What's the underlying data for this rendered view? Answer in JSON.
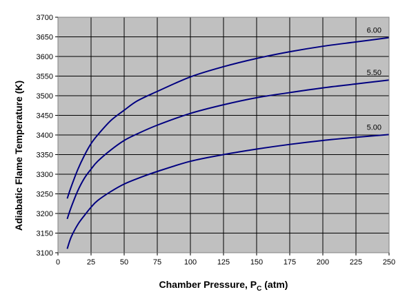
{
  "chart_data": {
    "type": "line",
    "title": "",
    "xlabel": {
      "main": "Chamber Pressure, P",
      "sub": "C",
      "suffix": " (atm)"
    },
    "ylabel": "Adiabatic Flame Temperature (K)",
    "xlim": [
      0,
      250
    ],
    "ylim": [
      3100,
      3700
    ],
    "xticks": [
      0,
      25,
      50,
      75,
      100,
      125,
      150,
      175,
      200,
      225,
      250
    ],
    "yticks": [
      3100,
      3150,
      3200,
      3250,
      3300,
      3350,
      3400,
      3450,
      3500,
      3550,
      3600,
      3650,
      3700
    ],
    "grid": true,
    "legend": "none",
    "plot_background": "#c0c0c0",
    "line_color": "#000080",
    "series": [
      {
        "name": "6.00",
        "x": [
          7,
          10,
          15,
          20,
          25,
          30,
          40,
          50,
          60,
          75,
          100,
          125,
          150,
          175,
          200,
          225,
          250
        ],
        "y": [
          3238,
          3268,
          3312,
          3348,
          3378,
          3400,
          3437,
          3463,
          3487,
          3511,
          3548,
          3574,
          3595,
          3612,
          3626,
          3637,
          3648
        ]
      },
      {
        "name": "5.50",
        "x": [
          7,
          10,
          15,
          20,
          25,
          30,
          40,
          50,
          60,
          75,
          100,
          125,
          150,
          175,
          200,
          225,
          250
        ],
        "y": [
          3186,
          3216,
          3258,
          3290,
          3313,
          3333,
          3362,
          3386,
          3403,
          3425,
          3455,
          3477,
          3495,
          3508,
          3520,
          3530,
          3540
        ]
      },
      {
        "name": "5.00",
        "x": [
          7,
          10,
          15,
          20,
          25,
          30,
          40,
          50,
          60,
          75,
          100,
          125,
          150,
          175,
          200,
          225,
          250
        ],
        "y": [
          3110,
          3140,
          3172,
          3195,
          3216,
          3233,
          3256,
          3275,
          3289,
          3307,
          3333,
          3350,
          3364,
          3376,
          3386,
          3394,
          3401
        ]
      }
    ]
  }
}
